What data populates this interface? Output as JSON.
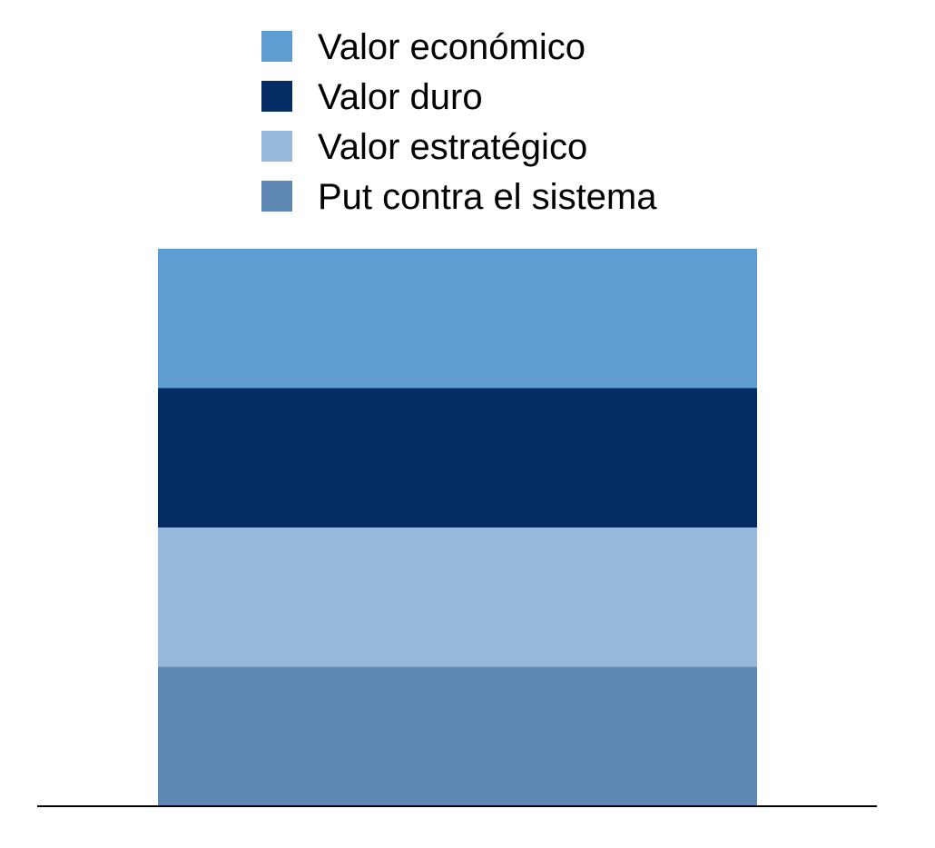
{
  "chart_data": {
    "type": "bar",
    "stacked": true,
    "title": "",
    "xlabel": "",
    "ylabel": "",
    "categories": [
      ""
    ],
    "ylim": [
      0,
      4
    ],
    "legend_position": "top-center",
    "series": [
      {
        "name": "Put contra el sistema",
        "values": [
          1
        ],
        "color": "#5f88b5"
      },
      {
        "name": "Valor estratégico",
        "values": [
          1
        ],
        "color": "#96b9db"
      },
      {
        "name": "Valor duro",
        "values": [
          1
        ],
        "color": "#052d63"
      },
      {
        "name": "Valor económico",
        "values": [
          1
        ],
        "color": "#5f9dd0"
      }
    ],
    "legend_order": [
      "Valor económico",
      "Valor duro",
      "Valor estratégico",
      "Put contra el sistema"
    ]
  }
}
